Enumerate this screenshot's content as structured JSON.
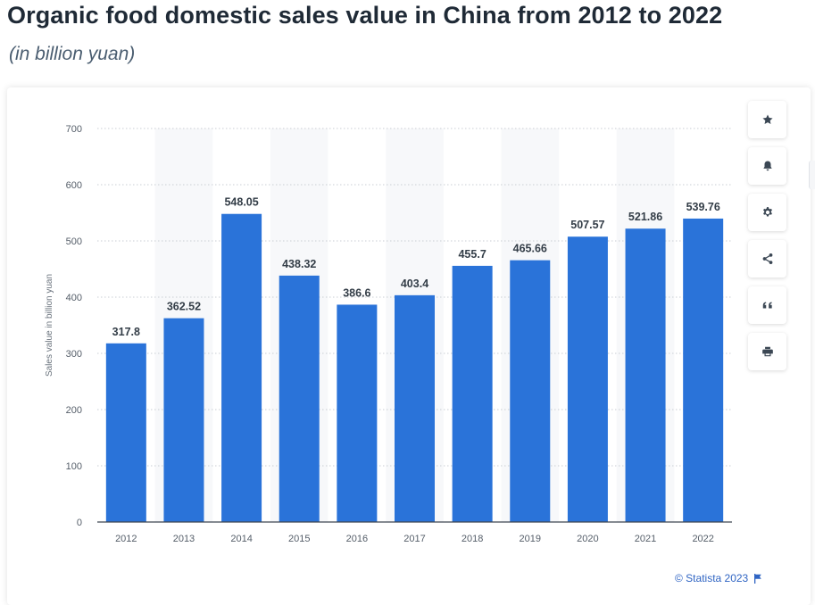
{
  "header": {
    "title": "Organic food domestic sales value in China from 2012 to 2022",
    "subtitle": "(in billion yuan)"
  },
  "toolbar": {
    "buttons": [
      {
        "name": "favorite",
        "icon": "star-icon"
      },
      {
        "name": "notification",
        "icon": "bell-icon"
      },
      {
        "name": "settings",
        "icon": "gear-icon"
      },
      {
        "name": "share",
        "icon": "share-icon"
      },
      {
        "name": "citation",
        "icon": "quote-icon"
      },
      {
        "name": "print",
        "icon": "printer-icon"
      }
    ]
  },
  "footer": {
    "credit": "© Statista 2023",
    "icon": "flag-icon"
  },
  "colors": {
    "bar": "#2a73d9",
    "title": "#1f2a36",
    "link": "#2f64c3",
    "icon": "#3b4754"
  },
  "chart_data": {
    "type": "bar",
    "categories": [
      "2012",
      "2013",
      "2014",
      "2015",
      "2016",
      "2017",
      "2018",
      "2019",
      "2020",
      "2021",
      "2022"
    ],
    "values": [
      317.8,
      362.52,
      548.05,
      438.32,
      386.6,
      403.4,
      455.7,
      465.66,
      507.57,
      521.86,
      539.76
    ],
    "value_labels": [
      "317.8",
      "362.52",
      "548.05",
      "438.32",
      "386.6",
      "403.4",
      "455.7",
      "465.66",
      "507.57",
      "521.86",
      "539.76"
    ],
    "ylabel": "Sales value in billion yuan",
    "xlabel": "",
    "ylim": [
      0,
      700
    ],
    "yticks": [
      0,
      100,
      200,
      300,
      400,
      500,
      600,
      700
    ],
    "grid": true,
    "alternating_column_shading": true,
    "legend": "none"
  }
}
